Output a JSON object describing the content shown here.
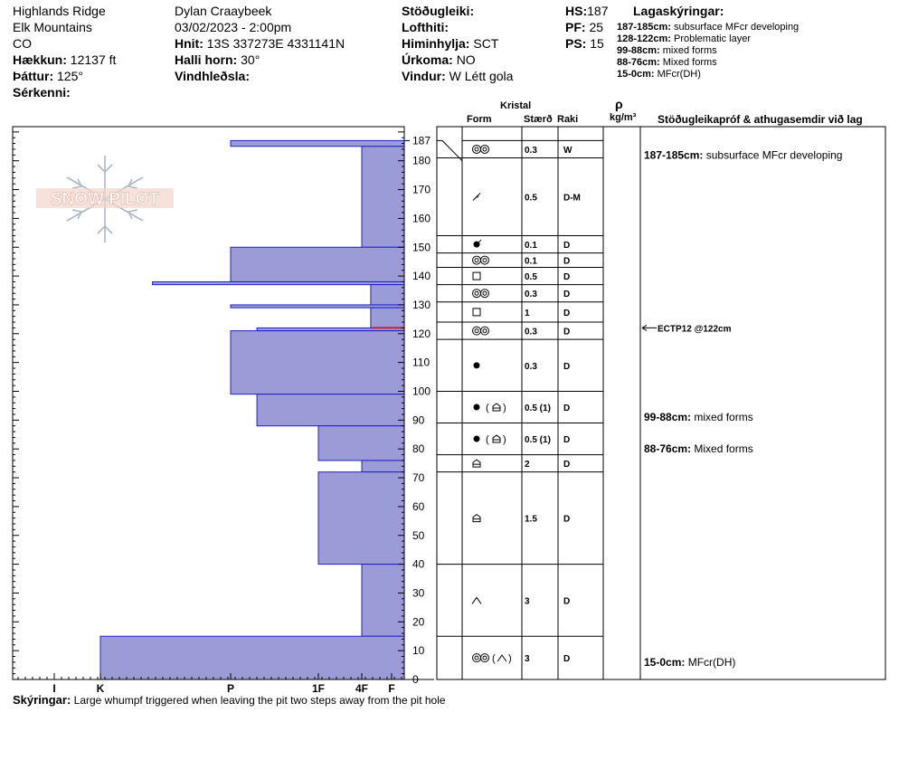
{
  "header": {
    "col1": [
      "Highlands Ridge",
      "Elk Mountains",
      "CO"
    ],
    "elevation": {
      "label": "Hækkun:",
      "value": "12137 ft"
    },
    "aspect": {
      "label": "Þáttur:",
      "value": "125°"
    },
    "features": {
      "label": "Sérkenni:",
      "value": ""
    },
    "observer": "Dylan Craaybeek",
    "datetime": "03/02/2023 - 2:00pm",
    "coords": {
      "label": "Hnit:",
      "value": "13S 337273E 4331141N"
    },
    "slope": {
      "label": "Halli horn:",
      "value": "30°"
    },
    "wind_loading": {
      "label": "Vindhleðsla:",
      "value": ""
    },
    "stability": {
      "label": "Stöðugleiki:",
      "value": ""
    },
    "air_temp": {
      "label": "Lofthiti:",
      "value": ""
    },
    "sky": {
      "label": "Himinhylja:",
      "value": "SCT"
    },
    "precip": {
      "label": "Úrkoma:",
      "value": "NO"
    },
    "wind": {
      "label": "Vindur:",
      "value": "W Létt gola"
    },
    "hs": {
      "label": "HS:",
      "value": "187"
    },
    "pf": {
      "label": "PF:",
      "value": "25"
    },
    "ps": {
      "label": "PS:",
      "value": "15"
    },
    "layer_notes_title": "Lagaskýringar:",
    "layer_notes": [
      {
        "range": "187-185cm:",
        "text": "subsurface MFcr developing"
      },
      {
        "range": "128-122cm:",
        "text": "Problematic layer"
      },
      {
        "range": "99-88cm:",
        "text": "mixed forms"
      },
      {
        "range": "88-76cm:",
        "text": "Mixed forms"
      },
      {
        "range": "15-0cm:",
        "text": "MFcr(DH)"
      }
    ]
  },
  "table_headers": {
    "crystal": "Kristal",
    "form": "Form",
    "size": "Stærð",
    "moisture": "Raki",
    "rho": "ρ",
    "density_unit": "kg/m³",
    "tests": "Stöðugleikapróf & athugasemdir við lag"
  },
  "watermark_text": "SNOW PILOT",
  "chart_data": {
    "type": "bar",
    "title": "",
    "ylabel": "",
    "xlabel": "",
    "y_range": [
      0,
      192
    ],
    "y_ticks": [
      0,
      10,
      20,
      30,
      40,
      50,
      60,
      70,
      80,
      90,
      100,
      110,
      120,
      130,
      140,
      150,
      160,
      170,
      180,
      187
    ],
    "hardness_ticks": [
      {
        "label": "I",
        "value": 0
      },
      {
        "label": "K",
        "value": 1
      },
      {
        "label": "P",
        "value": 2
      },
      {
        "label": "1F",
        "value": 3
      },
      {
        "label": "4F",
        "value": 3.5
      },
      {
        "label": "F",
        "value": 4
      }
    ],
    "hardness_profile": [
      {
        "top": 187,
        "bottom": 185,
        "hardness": 2
      },
      {
        "top": 185,
        "bottom": 150,
        "hardness": 3.5
      },
      {
        "top": 150,
        "bottom": 138,
        "hardness": 2
      },
      {
        "top": 138,
        "bottom": 137,
        "hardness": 1.4
      },
      {
        "top": 137,
        "bottom": 130,
        "hardness": 3.65
      },
      {
        "top": 130,
        "bottom": 129,
        "hardness": 2
      },
      {
        "top": 129,
        "bottom": 122,
        "hardness": 3.65
      },
      {
        "top": 122,
        "bottom": 121,
        "hardness": 2.3
      },
      {
        "top": 121,
        "bottom": 99,
        "hardness": 2
      },
      {
        "top": 99,
        "bottom": 88,
        "hardness": 2.3
      },
      {
        "top": 88,
        "bottom": 76,
        "hardness": 3
      },
      {
        "top": 76,
        "bottom": 72,
        "hardness": 3.5
      },
      {
        "top": 72,
        "bottom": 40,
        "hardness": 3
      },
      {
        "top": 40,
        "bottom": 15,
        "hardness": 3.5
      },
      {
        "top": 15,
        "bottom": 0,
        "hardness": 1
      }
    ],
    "layers": [
      {
        "top": 187,
        "bottom": 181,
        "form": "MFcr",
        "size": "0.3",
        "moisture": "W"
      },
      {
        "top": 181,
        "bottom": 154,
        "form": "DF",
        "size": "0.5",
        "moisture": "D-M"
      },
      {
        "top": 154,
        "bottom": 148,
        "form": "IM",
        "size": "0.1",
        "moisture": "D"
      },
      {
        "top": 148,
        "bottom": 143,
        "form": "MF",
        "size": "0.1",
        "moisture": "D"
      },
      {
        "top": 143,
        "bottom": 137,
        "form": "FC",
        "size": "0.5",
        "moisture": "D"
      },
      {
        "top": 137,
        "bottom": 131,
        "form": "MF",
        "size": "0.3",
        "moisture": "D"
      },
      {
        "top": 131,
        "bottom": 124,
        "form": "FC",
        "size": "1",
        "moisture": "D"
      },
      {
        "top": 124,
        "bottom": 118,
        "form": "MF",
        "size": "0.3",
        "moisture": "D"
      },
      {
        "top": 118,
        "bottom": 100,
        "form": "RG",
        "size": "0.3",
        "moisture": "D"
      },
      {
        "top": 100,
        "bottom": 89,
        "form": "RG(DH)",
        "size": "0.5 (1)",
        "moisture": "D"
      },
      {
        "top": 89,
        "bottom": 78,
        "form": "RG(DH)",
        "size": "0.5 (1)",
        "moisture": "D"
      },
      {
        "top": 78,
        "bottom": 72,
        "form": "DH",
        "size": "2",
        "moisture": "D"
      },
      {
        "top": 72,
        "bottom": 40,
        "form": "DH",
        "size": "1.5",
        "moisture": "D"
      },
      {
        "top": 40,
        "bottom": 15,
        "form": "SH",
        "size": "3",
        "moisture": "D"
      },
      {
        "top": 15,
        "bottom": 0,
        "form": "MF(SH)",
        "size": "3",
        "moisture": "D"
      }
    ],
    "comments": [
      {
        "range": "187-185cm:",
        "text": "subsurface MFcr developing",
        "height": 182
      },
      {
        "range": "99-88cm:",
        "text": "mixed forms",
        "height": 91
      },
      {
        "range": "88-76cm:",
        "text": "Mixed forms",
        "height": 80
      },
      {
        "range": "15-0cm:",
        "text": "MFcr(DH)",
        "height": 6
      }
    ],
    "stability_tests": [
      {
        "label": "ECTP12 @122cm",
        "height": 122
      }
    ]
  },
  "notes": {
    "label": "Skýringar:",
    "text": "Large whumpf triggered when leaving the pit two steps away from the pit hole"
  }
}
